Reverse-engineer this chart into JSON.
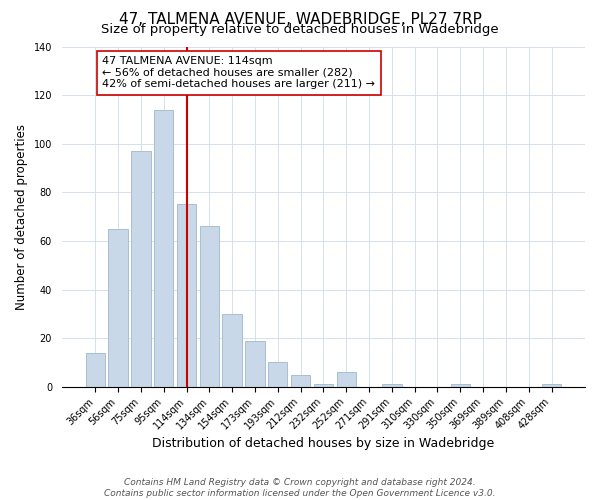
{
  "title": "47, TALMENA AVENUE, WADEBRIDGE, PL27 7RP",
  "subtitle": "Size of property relative to detached houses in Wadebridge",
  "xlabel": "Distribution of detached houses by size in Wadebridge",
  "ylabel": "Number of detached properties",
  "bar_labels": [
    "36sqm",
    "56sqm",
    "75sqm",
    "95sqm",
    "114sqm",
    "134sqm",
    "154sqm",
    "173sqm",
    "193sqm",
    "212sqm",
    "232sqm",
    "252sqm",
    "271sqm",
    "291sqm",
    "310sqm",
    "330sqm",
    "350sqm",
    "369sqm",
    "389sqm",
    "408sqm",
    "428sqm"
  ],
  "bar_values": [
    14,
    65,
    97,
    114,
    75,
    66,
    30,
    19,
    10,
    5,
    1,
    6,
    0,
    1,
    0,
    0,
    1,
    0,
    0,
    0,
    1
  ],
  "bar_color": "#c8d8e8",
  "bar_edge_color": "#a0b8cc",
  "vline_x": 4,
  "vline_color": "#cc0000",
  "annotation_title": "47 TALMENA AVENUE: 114sqm",
  "annotation_line1": "← 56% of detached houses are smaller (282)",
  "annotation_line2": "42% of semi-detached houses are larger (211) →",
  "annotation_box_color": "#ffffff",
  "annotation_box_edge": "#cc0000",
  "ylim": [
    0,
    140
  ],
  "yticks": [
    0,
    20,
    40,
    60,
    80,
    100,
    120,
    140
  ],
  "footer1": "Contains HM Land Registry data © Crown copyright and database right 2024.",
  "footer2": "Contains public sector information licensed under the Open Government Licence v3.0.",
  "title_fontsize": 11,
  "subtitle_fontsize": 9.5,
  "xlabel_fontsize": 9,
  "ylabel_fontsize": 8.5,
  "tick_fontsize": 7,
  "annotation_fontsize": 8,
  "footer_fontsize": 6.5
}
